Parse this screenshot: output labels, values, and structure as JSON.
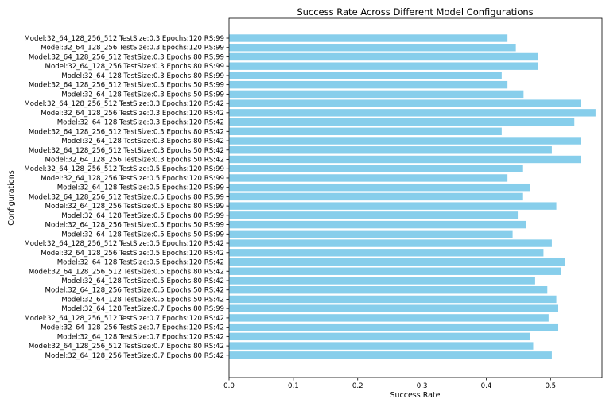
{
  "chart_data": {
    "type": "bar",
    "orientation": "horizontal",
    "title": "Success Rate Across Different Model Configurations",
    "xlabel": "Success Rate",
    "ylabel": "Configurations",
    "xlim": [
      0,
      0.58
    ],
    "xticks": [
      0.0,
      0.1,
      0.2,
      0.3,
      0.4,
      0.5
    ],
    "xtick_labels": [
      "0.0",
      "0.1",
      "0.2",
      "0.3",
      "0.4",
      "0.5"
    ],
    "grid": false,
    "bar_color": "#87ceeb",
    "categories": [
      "Model:32_64_128_256_512 TestSize:0.3 Epochs:120 RS:99",
      "Model:32_64_128_256 TestSize:0.3 Epochs:120 RS:99",
      "Model:32_64_128_256_512 TestSize:0.3 Epochs:80 RS:99",
      "Model:32_64_128_256 TestSize:0.3 Epochs:80 RS:99",
      "Model:32_64_128 TestSize:0.3 Epochs:80 RS:99",
      "Model:32_64_128_256_512 TestSize:0.3 Epochs:50 RS:99",
      "Model:32_64_128 TestSize:0.3 Epochs:50 RS:99",
      "Model:32_64_128_256_512 TestSize:0.3 Epochs:120 RS:42",
      "Model:32_64_128_256 TestSize:0.3 Epochs:120 RS:42",
      "Model:32_64_128 TestSize:0.3 Epochs:120 RS:42",
      "Model:32_64_128_256_512 TestSize:0.3 Epochs:80 RS:42",
      "Model:32_64_128 TestSize:0.3 Epochs:80 RS:42",
      "Model:32_64_128_256_512 TestSize:0.3 Epochs:50 RS:42",
      "Model:32_64_128_256 TestSize:0.3 Epochs:50 RS:42",
      "Model:32_64_128_256_512 TestSize:0.5 Epochs:120 RS:99",
      "Model:32_64_128_256 TestSize:0.5 Epochs:120 RS:99",
      "Model:32_64_128 TestSize:0.5 Epochs:120 RS:99",
      "Model:32_64_128_256_512 TestSize:0.5 Epochs:80 RS:99",
      "Model:32_64_128_256 TestSize:0.5 Epochs:80 RS:99",
      "Model:32_64_128 TestSize:0.5 Epochs:80 RS:99",
      "Model:32_64_128_256 TestSize:0.5 Epochs:50 RS:99",
      "Model:32_64_128 TestSize:0.5 Epochs:50 RS:99",
      "Model:32_64_128_256_512 TestSize:0.5 Epochs:120 RS:42",
      "Model:32_64_128_256 TestSize:0.5 Epochs:120 RS:42",
      "Model:32_64_128 TestSize:0.5 Epochs:120 RS:42",
      "Model:32_64_128_256_512 TestSize:0.5 Epochs:80 RS:42",
      "Model:32_64_128 TestSize:0.5 Epochs:80 RS:42",
      "Model:32_64_128_256 TestSize:0.5 Epochs:50 RS:42",
      "Model:32_64_128 TestSize:0.5 Epochs:50 RS:42",
      "Model:32_64_128 TestSize:0.7 Epochs:80 RS:99",
      "Model:32_64_128_256_512 TestSize:0.7 Epochs:120 RS:42",
      "Model:32_64_128_256 TestSize:0.7 Epochs:120 RS:42",
      "Model:32_64_128 TestSize:0.7 Epochs:120 RS:42",
      "Model:32_64_128_256_512 TestSize:0.7 Epochs:80 RS:42",
      "Model:32_64_128_256 TestSize:0.7 Epochs:80 RS:42"
    ],
    "values": [
      0.433,
      0.446,
      0.48,
      0.48,
      0.424,
      0.433,
      0.458,
      0.547,
      0.57,
      0.537,
      0.424,
      0.547,
      0.502,
      0.547,
      0.456,
      0.433,
      0.468,
      0.456,
      0.509,
      0.449,
      0.462,
      0.441,
      0.502,
      0.489,
      0.523,
      0.516,
      0.476,
      0.495,
      0.509,
      0.512,
      0.497,
      0.512,
      0.468,
      0.473,
      0.502
    ]
  }
}
